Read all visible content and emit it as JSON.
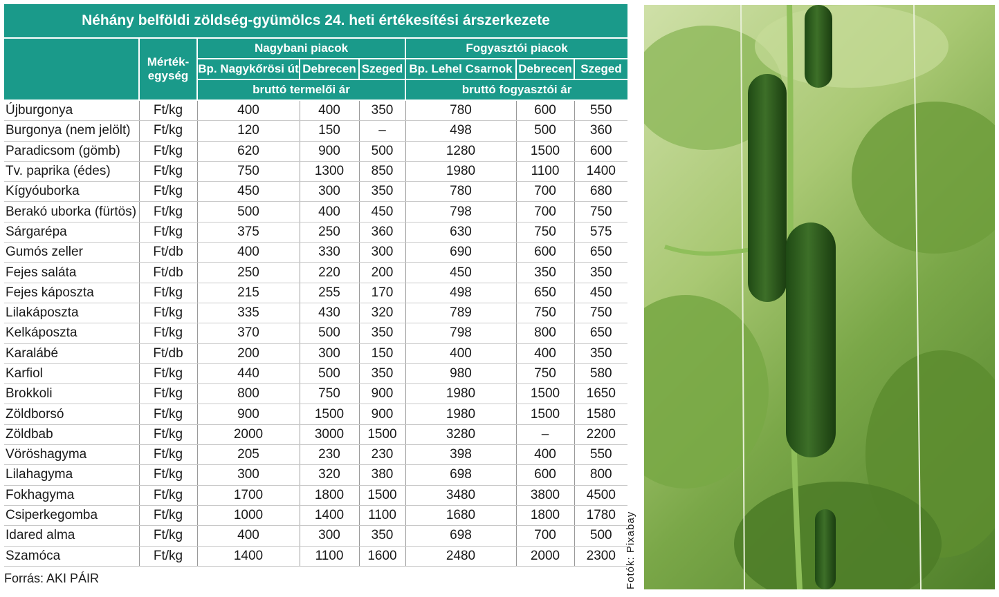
{
  "title": "Néhány belföldi zöldség-gyümölcs 24. heti értékesítési árszerkezete",
  "headers": {
    "unit": "Mérték-egység",
    "unit_l1": "Mérték-",
    "unit_l2": "egység",
    "wholesale": "Nagybani piacok",
    "retail": "Fogyasztói piacok",
    "wholesale_markets": [
      "Bp. Nagykőrösi út",
      "Debrecen",
      "Szeged"
    ],
    "retail_markets": [
      "Bp. Lehel Csarnok",
      "Debrecen",
      "Szeged"
    ],
    "wholesale_price": "bruttó termelői ár",
    "retail_price": "bruttó fogyasztói ár"
  },
  "rows": [
    {
      "name": "Újburgonya",
      "unit": "Ft/kg",
      "v": [
        "400",
        "400",
        "350",
        "780",
        "600",
        "550"
      ]
    },
    {
      "name": "Burgonya (nem jelölt)",
      "unit": "Ft/kg",
      "v": [
        "120",
        "150",
        "–",
        "498",
        "500",
        "360"
      ]
    },
    {
      "name": "Paradicsom (gömb)",
      "unit": "Ft/kg",
      "v": [
        "620",
        "900",
        "500",
        "1280",
        "1500",
        "600"
      ]
    },
    {
      "name": "Tv. paprika (édes)",
      "unit": "Ft/kg",
      "v": [
        "750",
        "1300",
        "850",
        "1980",
        "1100",
        "1400"
      ]
    },
    {
      "name": "Kígyóuborka",
      "unit": "Ft/kg",
      "v": [
        "450",
        "300",
        "350",
        "780",
        "700",
        "680"
      ]
    },
    {
      "name": "Berakó uborka (fürtös)",
      "unit": "Ft/kg",
      "v": [
        "500",
        "400",
        "450",
        "798",
        "700",
        "750"
      ]
    },
    {
      "name": "Sárgarépa",
      "unit": "Ft/kg",
      "v": [
        "375",
        "250",
        "360",
        "630",
        "750",
        "575"
      ]
    },
    {
      "name": "Gumós zeller",
      "unit": "Ft/db",
      "v": [
        "400",
        "330",
        "300",
        "690",
        "600",
        "650"
      ]
    },
    {
      "name": "Fejes saláta",
      "unit": "Ft/db",
      "v": [
        "250",
        "220",
        "200",
        "450",
        "350",
        "350"
      ]
    },
    {
      "name": "Fejes káposzta",
      "unit": "Ft/kg",
      "v": [
        "215",
        "255",
        "170",
        "498",
        "650",
        "450"
      ]
    },
    {
      "name": "Lilakáposzta",
      "unit": "Ft/kg",
      "v": [
        "335",
        "430",
        "320",
        "789",
        "750",
        "750"
      ]
    },
    {
      "name": "Kelkáposzta",
      "unit": "Ft/kg",
      "v": [
        "370",
        "500",
        "350",
        "798",
        "800",
        "650"
      ]
    },
    {
      "name": "Karalábé",
      "unit": "Ft/db",
      "v": [
        "200",
        "300",
        "150",
        "400",
        "400",
        "350"
      ]
    },
    {
      "name": "Karfiol",
      "unit": "Ft/kg",
      "v": [
        "440",
        "500",
        "350",
        "980",
        "750",
        "580"
      ]
    },
    {
      "name": "Brokkoli",
      "unit": "Ft/kg",
      "v": [
        "800",
        "750",
        "900",
        "1980",
        "1500",
        "1650"
      ]
    },
    {
      "name": "Zöldborsó",
      "unit": "Ft/kg",
      "v": [
        "900",
        "1500",
        "900",
        "1980",
        "1500",
        "1580"
      ]
    },
    {
      "name": "Zöldbab",
      "unit": "Ft/kg",
      "v": [
        "2000",
        "3000",
        "1500",
        "3280",
        "–",
        "2200"
      ]
    },
    {
      "name": "Vöröshagyma",
      "unit": "Ft/kg",
      "v": [
        "205",
        "230",
        "230",
        "398",
        "400",
        "550"
      ]
    },
    {
      "name": "Lilahagyma",
      "unit": "Ft/kg",
      "v": [
        "300",
        "320",
        "380",
        "698",
        "600",
        "800"
      ]
    },
    {
      "name": "Fokhagyma",
      "unit": "Ft/kg",
      "v": [
        "1700",
        "1800",
        "1500",
        "3480",
        "3800",
        "4500"
      ]
    },
    {
      "name": "Csiperkegomba",
      "unit": "Ft/kg",
      "v": [
        "1000",
        "1400",
        "1100",
        "1680",
        "1800",
        "1780"
      ]
    },
    {
      "name": "Idared alma",
      "unit": "Ft/kg",
      "v": [
        "400",
        "300",
        "350",
        "698",
        "700",
        "500"
      ]
    },
    {
      "name": "Szamóca",
      "unit": "Ft/kg",
      "v": [
        "1400",
        "1100",
        "1600",
        "2480",
        "2000",
        "2300"
      ]
    }
  ],
  "source": "Forrás: AKI PÁIR",
  "photo_credit": "Fotók: Pixabay",
  "colors": {
    "header_bg": "#1a9a8a",
    "header_text": "#ffffff"
  }
}
